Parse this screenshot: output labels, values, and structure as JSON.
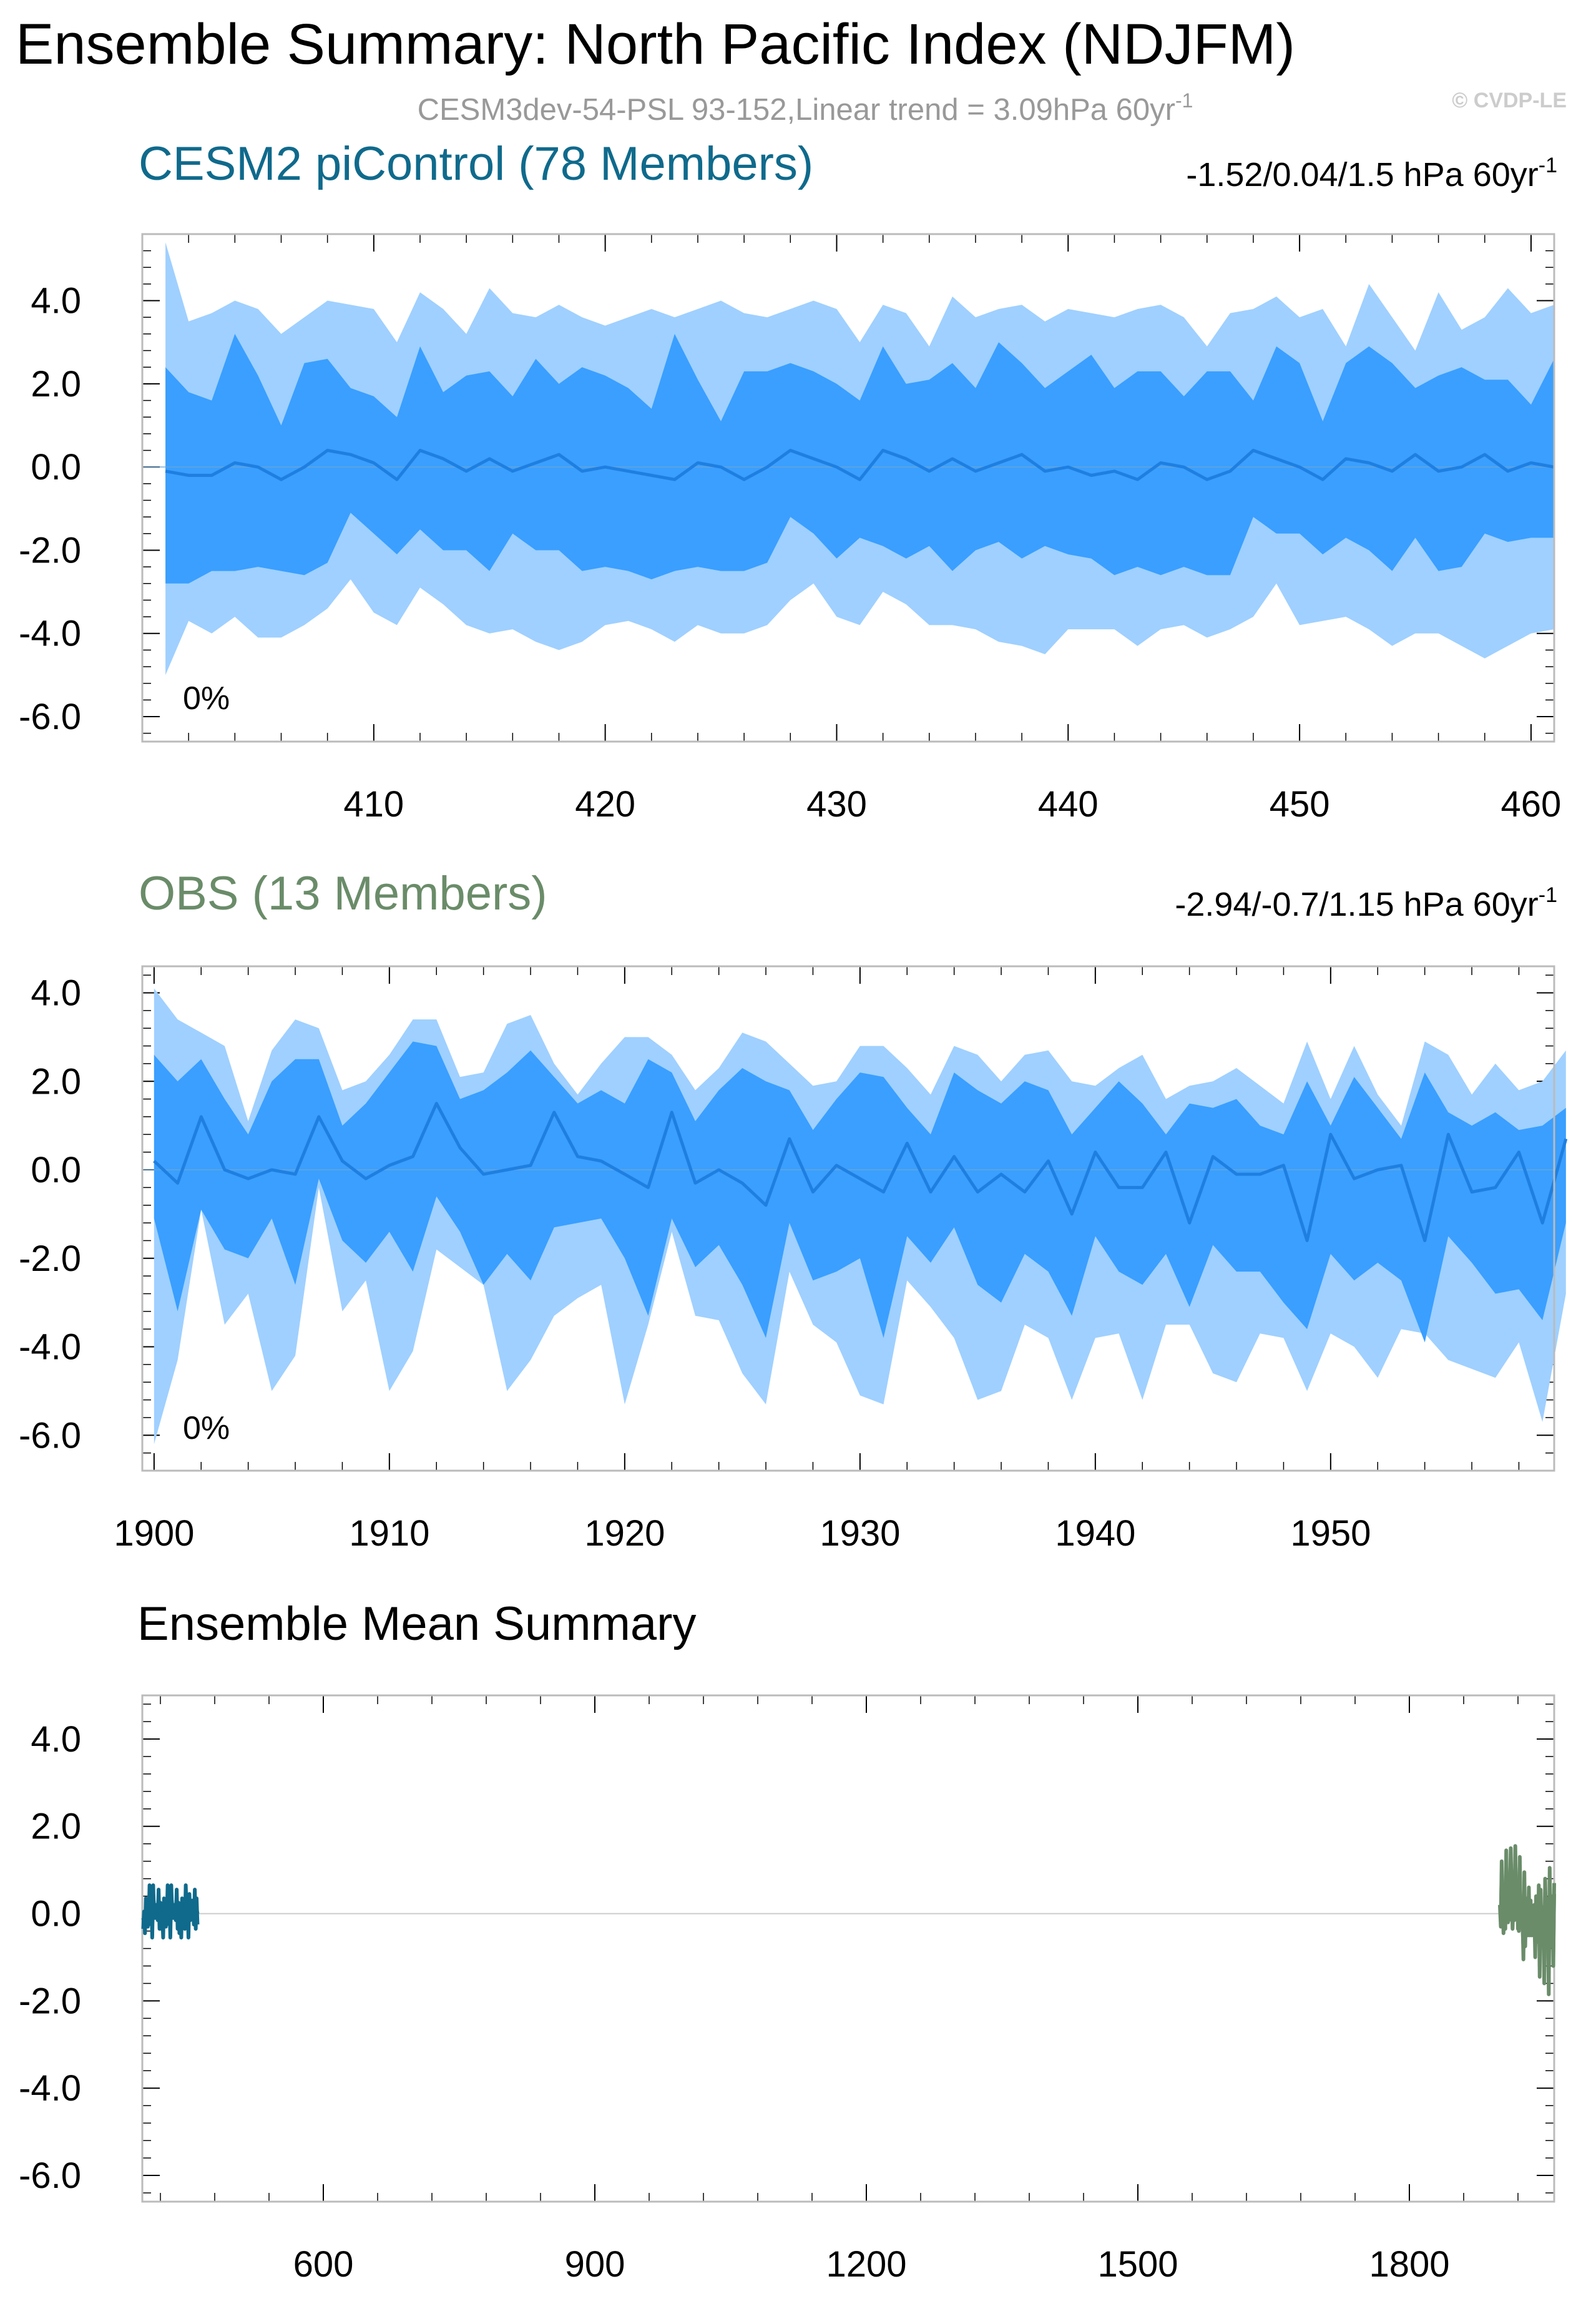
{
  "page": {
    "title": "Ensemble Summary: North Pacific Index (NDJFM)",
    "subtitle": "CESM3dev-54-PSL 93-152,Linear trend = 3.09hPa 60yr",
    "subtitle_sup": "-1",
    "copyright": "© CVDP-LE"
  },
  "colors": {
    "band_outer": "#9fd0ff",
    "band_inner": "#3a9fff",
    "mean_line": "#1f7fe0",
    "cesm2": "#0f6a8c",
    "obs": "#6a8c69",
    "frame": "#bbbbbb"
  },
  "chart_data": [
    {
      "type": "area",
      "name": "CESM2 piControl",
      "title": "CESM2 piControl (78 Members)",
      "trend_range": "-1.52/0.04/1.5 hPa 60yr",
      "trend_sup": "-1",
      "pct_label": "0%",
      "xlim": [
        400,
        461
      ],
      "ylim": [
        -6.6,
        5.6
      ],
      "yticks": [
        4.0,
        2.0,
        0.0,
        -2.0,
        -4.0,
        -6.0
      ],
      "ytick_labels": [
        "4.0",
        "2.0",
        "0.0",
        "-2.0",
        "-4.0",
        "-6.0"
      ],
      "xticks": [
        410,
        420,
        430,
        440,
        450,
        460
      ],
      "xtick_labels": [
        "410",
        "420",
        "430",
        "440",
        "450",
        "460"
      ],
      "x_start": 401,
      "upper_outer": [
        5.4,
        3.5,
        3.7,
        4.0,
        3.8,
        3.2,
        3.6,
        4.0,
        3.9,
        3.8,
        3.0,
        4.2,
        3.8,
        3.2,
        4.3,
        3.7,
        3.6,
        3.9,
        3.6,
        3.4,
        3.6,
        3.8,
        3.6,
        3.8,
        4.0,
        3.7,
        3.6,
        3.8,
        4.0,
        3.8,
        3.0,
        3.9,
        3.7,
        2.9,
        4.1,
        3.6,
        3.8,
        3.9,
        3.5,
        3.8,
        3.7,
        3.6,
        3.8,
        3.9,
        3.6,
        2.9,
        3.7,
        3.8,
        4.1,
        3.6,
        3.8,
        2.9,
        4.4,
        3.6,
        2.8,
        4.2,
        3.3,
        3.6,
        4.3,
        3.7,
        3.9
      ],
      "upper_inner": [
        2.4,
        1.8,
        1.6,
        3.2,
        2.2,
        1.0,
        2.5,
        2.6,
        1.9,
        1.7,
        1.2,
        2.9,
        1.8,
        2.2,
        2.3,
        1.7,
        2.6,
        2.0,
        2.4,
        2.2,
        1.9,
        1.4,
        3.2,
        2.1,
        1.1,
        2.3,
        2.3,
        2.5,
        2.3,
        2.0,
        1.6,
        2.9,
        2.0,
        2.1,
        2.5,
        1.9,
        3.0,
        2.5,
        1.9,
        2.3,
        2.7,
        1.9,
        2.3,
        2.3,
        1.7,
        2.3,
        2.3,
        1.6,
        2.9,
        2.5,
        1.1,
        2.5,
        2.9,
        2.5,
        1.9,
        2.2,
        2.4,
        2.1,
        2.1,
        1.5,
        2.6
      ],
      "mean": [
        -0.1,
        -0.2,
        -0.2,
        0.1,
        0.0,
        -0.3,
        0.0,
        0.4,
        0.3,
        0.1,
        -0.3,
        0.4,
        0.2,
        -0.1,
        0.2,
        -0.1,
        0.1,
        0.3,
        -0.1,
        0.0,
        -0.1,
        -0.2,
        -0.3,
        0.1,
        0.0,
        -0.3,
        0.0,
        0.4,
        0.2,
        0.0,
        -0.3,
        0.4,
        0.2,
        -0.1,
        0.2,
        -0.1,
        0.1,
        0.3,
        -0.1,
        0.0,
        -0.2,
        -0.1,
        -0.3,
        0.1,
        0.0,
        -0.3,
        -0.1,
        0.4,
        0.2,
        0.0,
        -0.3,
        0.2,
        0.1,
        -0.1,
        0.3,
        -0.1,
        0.0,
        0.3,
        -0.1,
        0.1,
        0.0
      ],
      "lower_inner": [
        -2.8,
        -2.8,
        -2.5,
        -2.5,
        -2.4,
        -2.5,
        -2.6,
        -2.3,
        -1.1,
        -1.6,
        -2.1,
        -1.5,
        -2.0,
        -2.0,
        -2.5,
        -1.6,
        -2.0,
        -2.0,
        -2.5,
        -2.4,
        -2.5,
        -2.7,
        -2.5,
        -2.4,
        -2.5,
        -2.5,
        -2.3,
        -1.2,
        -1.6,
        -2.2,
        -1.7,
        -1.9,
        -2.2,
        -1.9,
        -2.5,
        -2.0,
        -1.8,
        -2.2,
        -1.9,
        -2.1,
        -2.2,
        -2.6,
        -2.4,
        -2.6,
        -2.4,
        -2.6,
        -2.6,
        -1.2,
        -1.6,
        -1.6,
        -2.1,
        -1.7,
        -2.0,
        -2.5,
        -1.7,
        -2.5,
        -2.4,
        -1.6,
        -1.8,
        -1.7,
        -1.7
      ],
      "lower_outer": [
        -5.0,
        -3.7,
        -4.0,
        -3.6,
        -4.1,
        -4.1,
        -3.8,
        -3.4,
        -2.7,
        -3.5,
        -3.8,
        -2.9,
        -3.3,
        -3.8,
        -4.0,
        -3.9,
        -4.2,
        -4.4,
        -4.2,
        -3.8,
        -3.7,
        -3.9,
        -4.2,
        -3.8,
        -4.0,
        -4.0,
        -3.8,
        -3.2,
        -2.8,
        -3.6,
        -3.8,
        -3.0,
        -3.3,
        -3.8,
        -3.8,
        -3.9,
        -4.2,
        -4.3,
        -4.5,
        -3.9,
        -3.9,
        -3.9,
        -4.3,
        -3.9,
        -3.8,
        -4.1,
        -3.9,
        -3.6,
        -2.8,
        -3.8,
        -3.7,
        -3.6,
        -3.9,
        -4.3,
        -4.0,
        -4.0,
        -4.3,
        -4.6,
        -4.3,
        -4.0,
        -3.9
      ]
    },
    {
      "type": "area",
      "name": "OBS",
      "title": "OBS (13 Members)",
      "trend_range": "-2.94/-0.7/1.15 hPa 60yr",
      "trend_sup": "-1",
      "pct_label": "0%",
      "xlim": [
        1899.5,
        1959.5
      ],
      "ylim": [
        -6.8,
        4.6
      ],
      "yticks": [
        4.0,
        2.0,
        0.0,
        -2.0,
        -4.0,
        -6.0
      ],
      "ytick_labels": [
        "4.0",
        "2.0",
        "0.0",
        "-2.0",
        "-4.0",
        "-6.0"
      ],
      "xticks": [
        1900,
        1910,
        1920,
        1930,
        1940,
        1950
      ],
      "xtick_labels": [
        "1900",
        "1910",
        "1920",
        "1930",
        "1940",
        "1950"
      ],
      "x_start": 1900,
      "upper_outer": [
        4.1,
        3.4,
        3.1,
        2.8,
        1.1,
        2.7,
        3.4,
        3.2,
        1.8,
        2.0,
        2.6,
        3.4,
        3.4,
        2.1,
        2.2,
        3.3,
        3.5,
        2.4,
        1.7,
        2.4,
        3.0,
        3.0,
        2.6,
        1.8,
        2.3,
        3.1,
        2.9,
        2.4,
        1.9,
        2.0,
        2.8,
        2.8,
        2.3,
        1.7,
        2.8,
        2.6,
        2.0,
        2.6,
        2.7,
        2.0,
        1.9,
        2.3,
        2.6,
        1.6,
        1.9,
        2.0,
        2.3,
        1.9,
        1.5,
        2.9,
        1.6,
        2.8,
        1.7,
        1.0,
        2.9,
        2.6,
        1.7,
        2.4,
        1.8,
        2.0,
        2.7
      ],
      "upper_inner": [
        2.6,
        2.0,
        2.5,
        1.6,
        0.8,
        2.0,
        2.5,
        2.5,
        1.0,
        1.5,
        2.2,
        2.9,
        2.8,
        1.6,
        1.8,
        2.2,
        2.7,
        2.1,
        1.5,
        1.8,
        1.5,
        2.5,
        2.2,
        1.1,
        1.8,
        2.3,
        2.0,
        1.8,
        0.9,
        1.6,
        2.2,
        2.1,
        1.4,
        0.8,
        2.2,
        1.8,
        1.5,
        2.0,
        1.8,
        0.8,
        1.4,
        2.0,
        1.5,
        0.8,
        1.5,
        1.4,
        1.6,
        1.0,
        0.8,
        2.0,
        1.0,
        2.1,
        1.4,
        0.7,
        2.2,
        1.3,
        1.0,
        1.3,
        0.9,
        1.0,
        1.4
      ],
      "mean": [
        0.2,
        -0.3,
        1.2,
        0.0,
        -0.2,
        0.0,
        -0.1,
        1.2,
        0.2,
        -0.2,
        0.1,
        0.3,
        1.5,
        0.5,
        -0.1,
        0.0,
        0.1,
        1.3,
        0.3,
        0.2,
        -0.1,
        -0.4,
        1.3,
        -0.3,
        0.0,
        -0.3,
        -0.8,
        0.7,
        -0.5,
        0.1,
        -0.2,
        -0.5,
        0.6,
        -0.5,
        0.3,
        -0.5,
        -0.1,
        -0.5,
        0.2,
        -1.0,
        0.4,
        -0.4,
        -0.4,
        0.4,
        -1.2,
        0.3,
        -0.1,
        -0.1,
        0.1,
        -1.6,
        0.8,
        -0.2,
        0.0,
        0.1,
        -1.6,
        0.8,
        -0.5,
        -0.4,
        0.4,
        -1.2,
        0.7
      ],
      "lower_inner": [
        -1.1,
        -3.2,
        -0.9,
        -1.8,
        -2.0,
        -1.1,
        -2.6,
        -0.2,
        -1.6,
        -2.1,
        -1.4,
        -2.3,
        -0.6,
        -1.4,
        -2.6,
        -1.9,
        -2.5,
        -1.3,
        -1.2,
        -1.1,
        -2.0,
        -3.3,
        -1.1,
        -2.2,
        -1.7,
        -2.6,
        -3.8,
        -1.2,
        -2.5,
        -2.3,
        -2.0,
        -3.8,
        -1.5,
        -2.1,
        -1.3,
        -2.6,
        -3.0,
        -1.9,
        -2.3,
        -3.3,
        -1.5,
        -2.3,
        -2.6,
        -1.9,
        -3.1,
        -1.7,
        -2.3,
        -2.3,
        -3.0,
        -3.6,
        -1.9,
        -2.5,
        -2.1,
        -2.5,
        -3.9,
        -1.5,
        -2.1,
        -2.8,
        -2.7,
        -3.4,
        -1.2
      ],
      "lower_outer": [
        -6.2,
        -4.3,
        -0.9,
        -3.5,
        -2.8,
        -5.0,
        -4.2,
        -0.4,
        -3.2,
        -2.5,
        -5.0,
        -4.1,
        -1.8,
        -2.2,
        -2.6,
        -5.0,
        -4.3,
        -3.3,
        -2.9,
        -2.6,
        -5.3,
        -3.5,
        -1.4,
        -3.3,
        -3.4,
        -4.6,
        -5.3,
        -2.3,
        -3.5,
        -3.9,
        -5.1,
        -5.3,
        -2.5,
        -3.1,
        -3.8,
        -5.2,
        -5.0,
        -3.5,
        -3.8,
        -5.2,
        -3.8,
        -3.7,
        -5.2,
        -3.5,
        -3.5,
        -4.6,
        -4.8,
        -3.7,
        -3.8,
        -5.0,
        -3.7,
        -4.0,
        -4.7,
        -3.6,
        -3.7,
        -4.3,
        -4.5,
        -4.7,
        -3.9,
        -5.7,
        -2.8
      ]
    },
    {
      "type": "line",
      "name": "Ensemble Mean",
      "title": "Ensemble Mean Summary",
      "xlim": [
        400,
        1960
      ],
      "ylim": [
        -6.6,
        5.0
      ],
      "yticks": [
        4.0,
        2.0,
        0.0,
        -2.0,
        -4.0,
        -6.0
      ],
      "ytick_labels": [
        "4.0",
        "2.0",
        "0.0",
        "-2.0",
        "-4.0",
        "-6.0"
      ],
      "xticks": [
        600,
        900,
        1200,
        1500,
        1800
      ],
      "xtick_labels": [
        "600",
        "900",
        "1200",
        "1500",
        "1800"
      ],
      "series": [
        {
          "name": "CESM2 piControl",
          "color_key": "cesm2",
          "x_start": 401,
          "ref": 0
        },
        {
          "name": "OBS",
          "color_key": "obs",
          "x_start": 1900,
          "ref": 1
        }
      ]
    }
  ]
}
